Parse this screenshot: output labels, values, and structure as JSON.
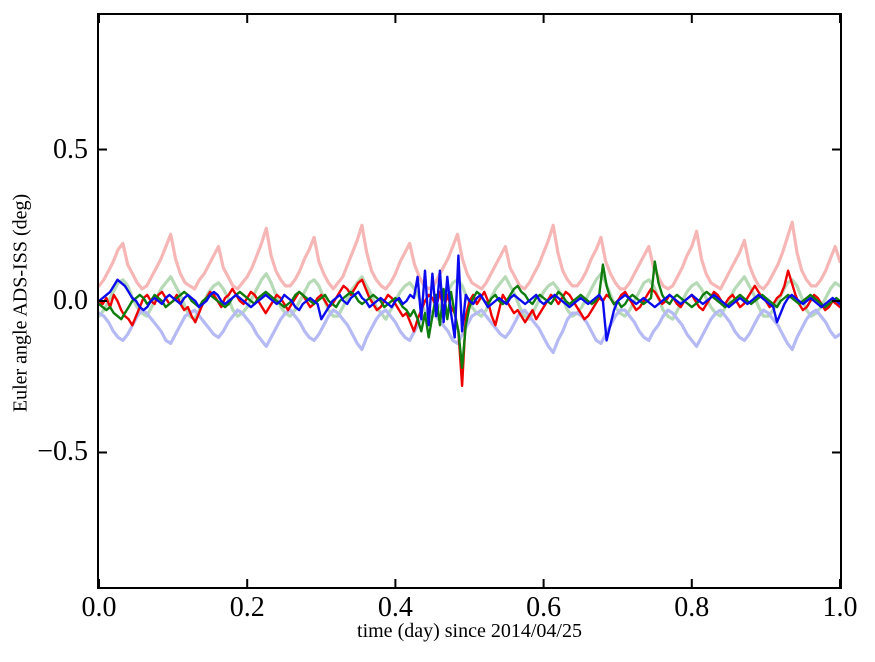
{
  "figure": {
    "background": "#ffffff",
    "axis_color": "#000000"
  },
  "chart_data": {
    "type": "line",
    "title": "",
    "xlabel": "time (day) since 2014/04/25",
    "ylabel": "Euler angle ADS-ISS (deg)",
    "xlim": [
      0.0,
      1.0
    ],
    "ylim": [
      -0.944,
      0.944
    ],
    "xticks": [
      0.0,
      0.2,
      0.4,
      0.6,
      0.8,
      1.0
    ],
    "xtick_labels": [
      "0.0",
      "0.2",
      "0.4",
      "0.6",
      "0.8",
      "1.0"
    ],
    "yticks": [
      -0.5,
      0.0,
      0.5
    ],
    "ytick_labels": [
      "−0.5",
      "0.0",
      "0.5"
    ],
    "grid": false,
    "legend": null,
    "tick_direction": "in",
    "series": [
      {
        "name": "light-red",
        "color": "#f6b6b6",
        "width": 3.2,
        "values": [
          0.05,
          0.07,
          0.1,
          0.13,
          0.17,
          0.19,
          0.12,
          0.09,
          0.06,
          0.04,
          0.05,
          0.08,
          0.11,
          0.14,
          0.18,
          0.22,
          0.14,
          0.09,
          0.06,
          0.05,
          0.04,
          0.07,
          0.09,
          0.12,
          0.15,
          0.18,
          0.11,
          0.08,
          0.05,
          0.04,
          0.06,
          0.08,
          0.11,
          0.15,
          0.19,
          0.24,
          0.15,
          0.1,
          0.07,
          0.05,
          0.05,
          0.07,
          0.1,
          0.14,
          0.17,
          0.21,
          0.13,
          0.09,
          0.06,
          0.04,
          0.06,
          0.08,
          0.12,
          0.16,
          0.2,
          0.25,
          0.16,
          0.1,
          0.07,
          0.05,
          0.04,
          0.06,
          0.09,
          0.13,
          0.16,
          0.19,
          0.12,
          0.08,
          0.05,
          0.04,
          0.05,
          0.08,
          0.11,
          0.14,
          0.18,
          0.22,
          0.14,
          0.09,
          0.06,
          0.05,
          0.04,
          0.06,
          0.09,
          0.12,
          0.15,
          0.18,
          0.11,
          0.08,
          0.05,
          0.04,
          0.06,
          0.09,
          0.12,
          0.16,
          0.2,
          0.25,
          0.16,
          0.1,
          0.07,
          0.05,
          0.05,
          0.07,
          0.1,
          0.14,
          0.17,
          0.21,
          0.13,
          0.09,
          0.06,
          0.04,
          0.04,
          0.06,
          0.09,
          0.12,
          0.15,
          0.18,
          0.11,
          0.08,
          0.05,
          0.04,
          0.05,
          0.08,
          0.11,
          0.15,
          0.18,
          0.23,
          0.14,
          0.09,
          0.06,
          0.05,
          0.04,
          0.07,
          0.1,
          0.13,
          0.16,
          0.2,
          0.12,
          0.08,
          0.05,
          0.04,
          0.06,
          0.09,
          0.12,
          0.16,
          0.21,
          0.26,
          0.16,
          0.1,
          0.07,
          0.05,
          0.05,
          0.07,
          0.1,
          0.14,
          0.18,
          0.13
        ]
      },
      {
        "name": "light-green",
        "color": "#b6d9b6",
        "width": 3.2,
        "values": [
          -0.05,
          -0.03,
          0.0,
          0.03,
          0.06,
          0.07,
          0.05,
          0.01,
          -0.02,
          -0.04,
          -0.05,
          -0.02,
          0.01,
          0.04,
          0.06,
          0.08,
          0.05,
          0.02,
          -0.02,
          -0.05,
          -0.06,
          -0.03,
          0.0,
          0.03,
          0.05,
          0.06,
          0.04,
          0.01,
          -0.03,
          -0.05,
          -0.04,
          -0.02,
          0.01,
          0.04,
          0.07,
          0.09,
          0.06,
          0.02,
          -0.02,
          -0.04,
          -0.05,
          -0.03,
          0.0,
          0.03,
          0.06,
          0.07,
          0.05,
          0.01,
          -0.03,
          -0.05,
          -0.05,
          -0.02,
          0.01,
          0.04,
          0.06,
          0.08,
          0.05,
          0.02,
          -0.02,
          -0.04,
          -0.06,
          -0.03,
          0.0,
          0.03,
          0.05,
          0.06,
          0.04,
          0.01,
          -0.03,
          -0.05,
          -0.05,
          -0.02,
          0.0,
          0.03,
          0.06,
          0.07,
          0.05,
          0.01,
          -0.02,
          -0.04,
          -0.05,
          -0.03,
          0.01,
          0.04,
          0.06,
          0.08,
          0.05,
          0.02,
          -0.02,
          -0.05,
          -0.06,
          -0.03,
          0.0,
          0.03,
          0.05,
          0.06,
          0.04,
          0.01,
          -0.03,
          -0.05,
          -0.04,
          -0.02,
          0.01,
          0.04,
          0.07,
          0.09,
          0.06,
          0.02,
          -0.02,
          -0.04,
          -0.05,
          -0.03,
          0.0,
          0.03,
          0.06,
          0.07,
          0.05,
          0.01,
          -0.03,
          -0.05,
          -0.06,
          -0.03,
          0.0,
          0.03,
          0.05,
          0.06,
          0.04,
          0.01,
          -0.02,
          -0.04,
          -0.05,
          -0.02,
          0.01,
          0.04,
          0.06,
          0.08,
          0.05,
          0.02,
          -0.02,
          -0.05,
          -0.05,
          -0.03,
          0.0,
          0.03,
          0.06,
          0.07,
          0.05,
          0.01,
          -0.03,
          -0.05,
          -0.04,
          -0.02,
          0.01,
          0.04,
          0.06,
          0.05
        ]
      },
      {
        "name": "light-blue",
        "color": "#b6baf4",
        "width": 3.2,
        "values": [
          -0.04,
          -0.05,
          -0.07,
          -0.1,
          -0.12,
          -0.13,
          -0.11,
          -0.08,
          -0.05,
          -0.03,
          -0.04,
          -0.06,
          -0.08,
          -0.1,
          -0.13,
          -0.14,
          -0.11,
          -0.08,
          -0.05,
          -0.04,
          -0.03,
          -0.05,
          -0.07,
          -0.09,
          -0.11,
          -0.12,
          -0.1,
          -0.07,
          -0.05,
          -0.03,
          -0.04,
          -0.06,
          -0.08,
          -0.11,
          -0.13,
          -0.15,
          -0.12,
          -0.09,
          -0.06,
          -0.04,
          -0.03,
          -0.05,
          -0.07,
          -0.1,
          -0.12,
          -0.13,
          -0.11,
          -0.08,
          -0.05,
          -0.03,
          -0.04,
          -0.06,
          -0.08,
          -0.11,
          -0.14,
          -0.16,
          -0.12,
          -0.09,
          -0.06,
          -0.04,
          -0.03,
          -0.05,
          -0.07,
          -0.1,
          -0.12,
          -0.13,
          -0.1,
          -0.07,
          -0.05,
          -0.03,
          -0.04,
          -0.06,
          -0.08,
          -0.1,
          -0.13,
          -0.14,
          -0.11,
          -0.08,
          -0.05,
          -0.04,
          -0.03,
          -0.05,
          -0.07,
          -0.09,
          -0.11,
          -0.12,
          -0.1,
          -0.07,
          -0.04,
          -0.03,
          -0.05,
          -0.07,
          -0.09,
          -0.12,
          -0.15,
          -0.17,
          -0.13,
          -0.1,
          -0.06,
          -0.04,
          -0.04,
          -0.05,
          -0.07,
          -0.1,
          -0.13,
          -0.14,
          -0.11,
          -0.08,
          -0.05,
          -0.03,
          -0.03,
          -0.05,
          -0.07,
          -0.1,
          -0.12,
          -0.13,
          -0.1,
          -0.08,
          -0.05,
          -0.03,
          -0.04,
          -0.06,
          -0.08,
          -0.11,
          -0.13,
          -0.15,
          -0.12,
          -0.09,
          -0.06,
          -0.04,
          -0.03,
          -0.05,
          -0.07,
          -0.1,
          -0.12,
          -0.13,
          -0.11,
          -0.08,
          -0.05,
          -0.03,
          -0.04,
          -0.06,
          -0.08,
          -0.11,
          -0.14,
          -0.16,
          -0.12,
          -0.09,
          -0.06,
          -0.04,
          -0.03,
          -0.05,
          -0.07,
          -0.1,
          -0.12,
          -0.11
        ]
      },
      {
        "name": "red",
        "color": "#ee0000",
        "width": 2.4,
        "values": [
          0.0,
          -0.01,
          0.01,
          -0.02,
          0.02,
          0.0,
          -0.03,
          -0.05,
          -0.06,
          -0.08,
          -0.05,
          -0.02,
          0.01,
          0.02,
          0.0,
          -0.01,
          0.02,
          0.03,
          0.01,
          -0.01,
          0.0,
          0.02,
          -0.01,
          -0.03,
          -0.02,
          -0.05,
          -0.07,
          -0.04,
          -0.01,
          0.01,
          0.03,
          0.02,
          0.0,
          -0.02,
          0.01,
          0.02,
          0.04,
          0.02,
          0.0,
          -0.01,
          0.01,
          0.03,
          0.02,
          0.0,
          -0.02,
          -0.04,
          -0.02,
          0.0,
          0.02,
          0.01,
          -0.01,
          -0.03,
          -0.01,
          0.01,
          0.03,
          0.02,
          0.0,
          -0.02,
          -0.01,
          0.01,
          0.02,
          0.0,
          -0.02,
          -0.01,
          0.01,
          0.03,
          0.05,
          0.04,
          0.02,
          0.04,
          0.06,
          0.07,
          0.04,
          0.01,
          -0.01,
          -0.03,
          -0.02,
          0.0,
          0.02,
          0.01,
          -0.01,
          -0.03,
          -0.05,
          -0.04,
          -0.07,
          -0.1,
          -0.06,
          -0.03,
          0.0,
          0.02,
          0.01,
          -0.02,
          0.03,
          -0.03,
          0.02,
          -0.02,
          -0.04,
          -0.1,
          -0.28,
          -0.05,
          0.0,
          0.02,
          -0.01,
          0.01,
          0.03,
          0.0,
          -0.05,
          -0.08,
          -0.03,
          0.02,
          0.0,
          -0.02,
          -0.04,
          -0.03,
          -0.05,
          -0.07,
          -0.05,
          -0.03,
          -0.06,
          -0.04,
          -0.02,
          0.0,
          0.02,
          0.01,
          -0.01,
          0.01,
          0.03,
          0.02,
          0.0,
          -0.02,
          -0.04,
          -0.06,
          -0.05,
          -0.03,
          -0.01,
          0.01,
          0.0,
          0.02,
          0.01,
          -0.01,
          0.0,
          0.02,
          0.03,
          0.01,
          -0.01,
          -0.03,
          -0.02,
          0.0,
          0.02,
          0.04,
          0.03,
          0.01,
          -0.01,
          0.0,
          0.02,
          0.01,
          -0.01,
          -0.02,
          0.0,
          0.01,
          0.02,
          0.0,
          -0.02,
          -0.03,
          -0.01,
          0.01,
          0.03,
          0.02,
          0.0,
          -0.01,
          0.01,
          0.02,
          0.0,
          -0.02,
          -0.01,
          0.01,
          0.03,
          0.05,
          0.03,
          0.01,
          0.0,
          -0.02,
          -0.01,
          0.01,
          0.02,
          0.05,
          0.1,
          0.06,
          0.02,
          -0.01,
          -0.03,
          -0.02,
          0.0,
          0.02,
          0.01,
          -0.01,
          -0.03,
          -0.02,
          0.0,
          -0.01,
          -0.02
        ]
      },
      {
        "name": "green",
        "color": "#0e7d0e",
        "width": 2.4,
        "values": [
          -0.01,
          -0.02,
          -0.03,
          -0.02,
          -0.04,
          -0.05,
          -0.06,
          -0.04,
          -0.02,
          0.0,
          0.01,
          0.02,
          0.01,
          -0.01,
          0.0,
          0.02,
          0.01,
          0.0,
          -0.02,
          -0.01,
          0.0,
          0.01,
          0.02,
          0.03,
          0.02,
          0.0,
          -0.01,
          -0.02,
          0.0,
          0.01,
          0.02,
          0.01,
          0.0,
          -0.01,
          -0.02,
          -0.01,
          0.01,
          0.02,
          0.03,
          0.02,
          0.01,
          0.0,
          -0.01,
          0.01,
          0.02,
          0.03,
          0.02,
          0.01,
          0.0,
          -0.01,
          -0.02,
          -0.01,
          0.0,
          0.02,
          0.03,
          0.02,
          0.01,
          0.0,
          -0.01,
          0.0,
          0.01,
          0.02,
          0.0,
          -0.01,
          -0.02,
          0.0,
          0.01,
          0.02,
          0.03,
          0.02,
          0.0,
          -0.01,
          0.0,
          0.01,
          0.02,
          0.01,
          0.0,
          -0.02,
          -0.01,
          0.0,
          0.01,
          0.0,
          -0.02,
          -0.03,
          -0.05,
          -0.03,
          -0.06,
          -0.1,
          -0.04,
          -0.12,
          -0.05,
          0.02,
          -0.08,
          0.04,
          -0.06,
          0.03,
          -0.04,
          -0.1,
          -0.22,
          -0.08,
          -0.02,
          0.01,
          0.03,
          0.02,
          0.0,
          -0.01,
          0.01,
          0.02,
          0.0,
          -0.01,
          0.0,
          0.02,
          0.04,
          0.05,
          0.03,
          0.02,
          0.0,
          -0.01,
          0.01,
          0.02,
          0.01,
          0.0,
          -0.01,
          0.01,
          0.03,
          0.02,
          0.0,
          -0.01,
          0.0,
          0.01,
          0.02,
          0.01,
          0.0,
          -0.01,
          0.0,
          0.02,
          0.12,
          0.05,
          0.01,
          -0.01,
          0.0,
          -0.02,
          -0.01,
          0.01,
          0.02,
          0.01,
          0.0,
          -0.01,
          0.0,
          0.01,
          0.13,
          0.06,
          0.02,
          0.0,
          -0.01,
          0.01,
          0.02,
          0.01,
          0.0,
          -0.01,
          -0.02,
          -0.01,
          0.0,
          0.02,
          0.03,
          0.02,
          0.01,
          0.0,
          -0.01,
          -0.02,
          -0.01,
          0.0,
          0.01,
          0.02,
          0.01,
          0.0,
          -0.01,
          0.0,
          0.01,
          0.02,
          0.01,
          0.0,
          -0.01,
          -0.02,
          0.0,
          0.01,
          0.02,
          0.01,
          0.0,
          -0.01,
          0.0,
          0.01,
          0.02,
          0.01,
          0.0,
          -0.01,
          -0.02,
          -0.01,
          0.0,
          0.01,
          0.0
        ]
      },
      {
        "name": "blue",
        "color": "#0b0bee",
        "width": 2.4,
        "values": [
          0.0,
          0.01,
          0.02,
          0.03,
          0.05,
          0.07,
          0.06,
          0.05,
          0.03,
          0.01,
          0.0,
          -0.02,
          -0.03,
          -0.02,
          0.0,
          0.01,
          0.0,
          -0.01,
          0.01,
          0.02,
          0.01,
          0.0,
          -0.01,
          0.01,
          0.02,
          0.01,
          0.0,
          -0.02,
          -0.01,
          0.0,
          0.02,
          0.03,
          0.02,
          0.0,
          -0.01,
          0.0,
          0.01,
          0.02,
          0.01,
          0.0,
          -0.01,
          -0.02,
          -0.01,
          0.0,
          0.01,
          0.02,
          0.01,
          0.0,
          -0.01,
          0.0,
          0.02,
          0.01,
          0.0,
          -0.02,
          -0.03,
          -0.01,
          0.0,
          0.01,
          0.0,
          -0.01,
          -0.06,
          -0.04,
          -0.02,
          0.0,
          0.01,
          0.02,
          0.0,
          -0.01,
          0.01,
          0.02,
          0.03,
          0.01,
          0.0,
          -0.02,
          -0.01,
          0.0,
          0.01,
          0.0,
          -0.01,
          -0.02,
          0.0,
          0.01,
          -0.01,
          0.0,
          0.02,
          0.01,
          0.08,
          -0.06,
          0.1,
          -0.08,
          0.09,
          -0.05,
          0.1,
          -0.07,
          0.08,
          -0.04,
          -0.12,
          0.15,
          -0.1,
          0.02,
          0.0,
          -0.01,
          0.01,
          0.02,
          0.0,
          -0.02,
          -0.01,
          0.0,
          0.01,
          0.0,
          -0.01,
          0.01,
          0.02,
          0.01,
          0.0,
          -0.01,
          0.0,
          0.01,
          0.02,
          0.0,
          -0.01,
          0.0,
          0.01,
          0.02,
          0.01,
          0.0,
          -0.01,
          -0.02,
          -0.01,
          0.0,
          0.01,
          0.0,
          -0.01,
          0.0,
          0.01,
          0.02,
          0.0,
          -0.13,
          -0.08,
          -0.03,
          0.0,
          0.01,
          0.02,
          0.01,
          0.0,
          -0.01,
          0.0,
          0.01,
          0.0,
          -0.01,
          -0.02,
          -0.01,
          0.0,
          0.01,
          0.02,
          0.01,
          0.0,
          -0.01,
          0.0,
          0.01,
          0.02,
          0.01,
          0.0,
          -0.01,
          0.0,
          0.01,
          0.02,
          0.01,
          0.0,
          -0.01,
          -0.02,
          -0.01,
          0.0,
          0.01,
          0.0,
          -0.01,
          0.0,
          0.01,
          0.02,
          0.01,
          0.0,
          -0.01,
          -0.02,
          -0.07,
          -0.04,
          -0.01,
          0.01,
          0.02,
          0.01,
          0.0,
          -0.01,
          0.0,
          0.01,
          0.0,
          -0.01,
          -0.02,
          -0.01,
          0.0,
          0.01,
          0.0,
          -0.01
        ]
      }
    ]
  }
}
